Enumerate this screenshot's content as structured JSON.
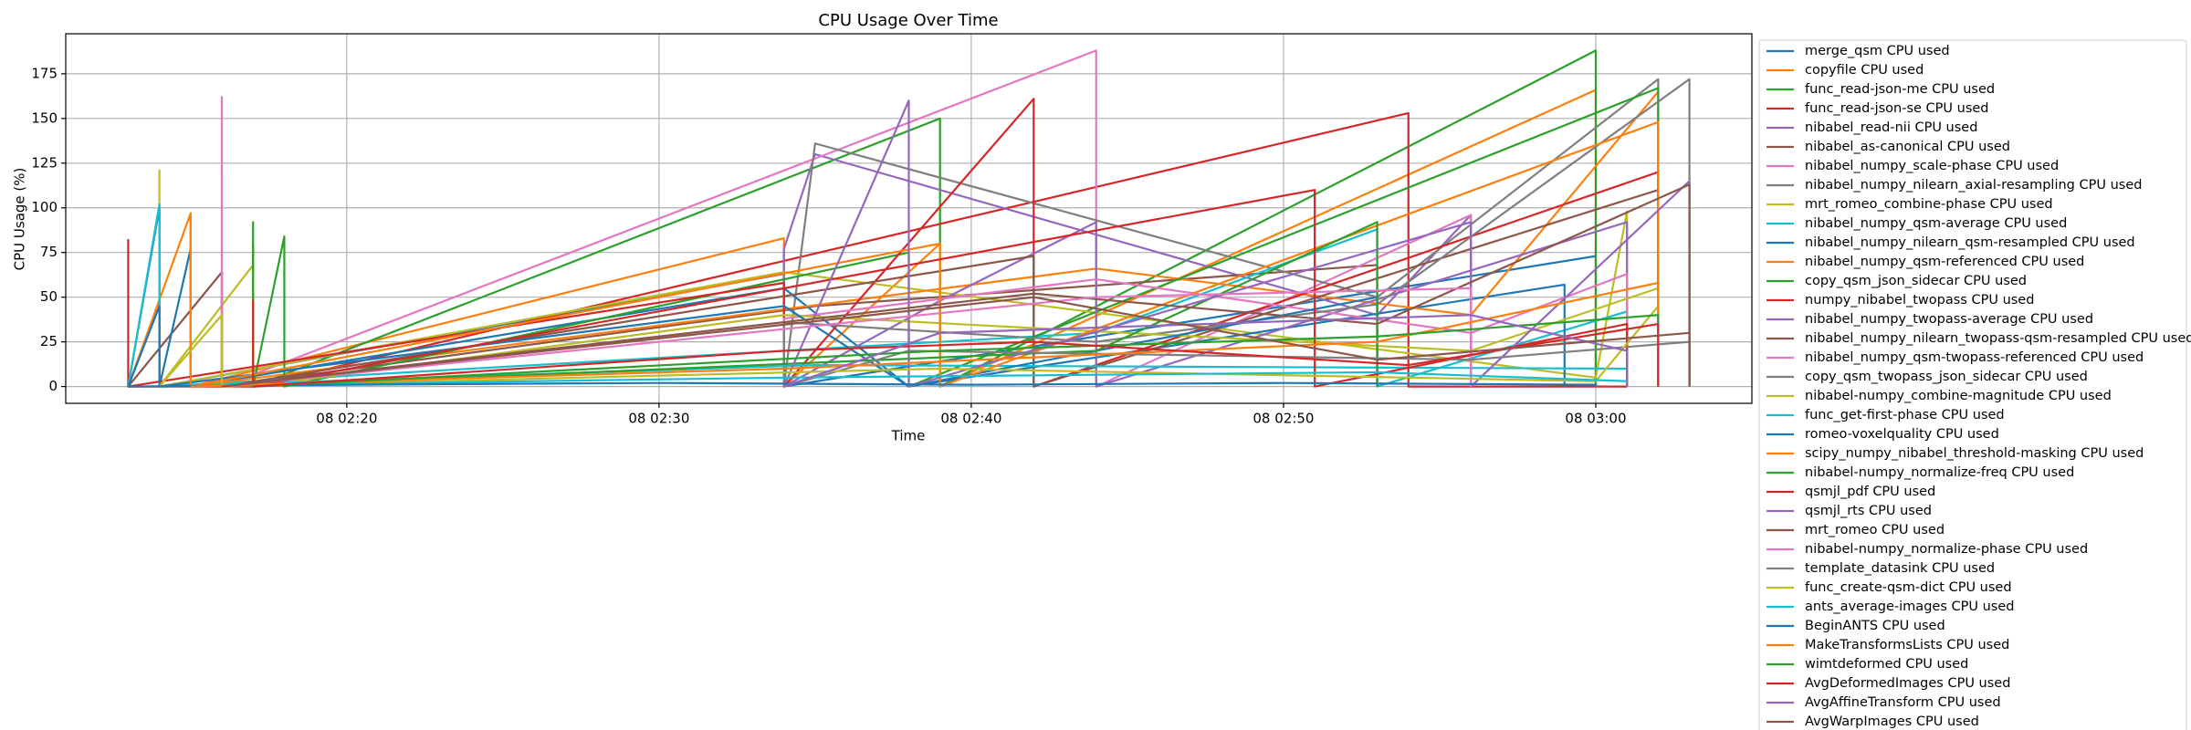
{
  "chart_data": {
    "type": "line",
    "title": "CPU Usage Over Time",
    "x_label": "Time",
    "y_label": "CPU Usage (%)",
    "xlim": [
      "08 02:11",
      "08 03:05"
    ],
    "xticks": [
      "08 02:20",
      "08 02:30",
      "08 02:40",
      "08 02:50",
      "08 03:00"
    ],
    "ylim": [
      -9.4,
      197.4
    ],
    "yticks": [
      0,
      25,
      50,
      75,
      100,
      125,
      150,
      175
    ],
    "grid": true,
    "legend": "outside-right",
    "series": [
      {
        "name": "merge_qsm CPU used",
        "color": "#1f77b4",
        "x": [
          "08 02:13",
          "08 02:14",
          "08 02:14",
          "08 02:34",
          "08 02:34",
          "08 03:00",
          "08 03:00"
        ],
        "values": [
          0,
          100,
          0,
          63,
          0,
          73,
          0
        ]
      },
      {
        "name": "copyfile CPU used",
        "color": "#ff7f0e",
        "x": [
          "08 02:13",
          "08 02:15",
          "08 02:15",
          "08 02:34",
          "08 02:34",
          "08 02:39",
          "08 02:39",
          "08 03:00",
          "08 03:00"
        ],
        "values": [
          0,
          97,
          0,
          83,
          0,
          80,
          0,
          166,
          0
        ]
      },
      {
        "name": "func_read-json-me CPU used",
        "color": "#2ca02c",
        "x": [
          "08 02:17",
          "08 02:17",
          "08 02:17",
          "08 02:39",
          "08 02:39",
          "08 03:00",
          "08 03:00"
        ],
        "values": [
          0,
          92,
          0,
          150,
          0,
          188,
          0
        ]
      },
      {
        "name": "func_read-json-se CPU used",
        "color": "#d62728",
        "x": [
          "08 02:13",
          "08 02:13",
          "08 02:13",
          "08 02:17",
          "08 02:54",
          "08 02:54",
          "08 03:01"
        ],
        "values": [
          0,
          82,
          0,
          0,
          153,
          0,
          0
        ]
      },
      {
        "name": "nibabel_read-nii CPU used",
        "color": "#9467bd",
        "x": [
          "08 02:34",
          "08 02:34",
          "08 02:35",
          "08 02:53",
          "08 02:56",
          "08 02:56"
        ],
        "values": [
          0,
          77,
          130,
          40,
          96,
          0
        ]
      },
      {
        "name": "nibabel_as-canonical CPU used",
        "color": "#8c564b",
        "x": [
          "08 02:13",
          "08 02:16",
          "08 02:16",
          "08 02:35",
          "08 02:53",
          "08 02:53"
        ],
        "values": [
          0,
          64,
          0,
          45,
          68,
          0
        ]
      },
      {
        "name": "nibabel_numpy_scale-phase CPU used",
        "color": "#e377c2",
        "x": [
          "08 02:16",
          "08 02:16",
          "08 02:16",
          "08 02:44",
          "08 02:44",
          "08 02:56",
          "08 02:56"
        ],
        "values": [
          0,
          162,
          0,
          188,
          0,
          96,
          0
        ]
      },
      {
        "name": "nibabel_numpy_nilearn_axial-resampling CPU used",
        "color": "#7f7f7f",
        "x": [
          "08 02:34",
          "08 02:35",
          "08 02:53",
          "08 03:02",
          "08 03:02"
        ],
        "values": [
          0,
          136,
          50,
          172,
          0
        ]
      },
      {
        "name": "mrt_romeo_combine-phase CPU used",
        "color": "#bcbd22",
        "x": [
          "08 02:14",
          "08 02:14",
          "08 02:14",
          "08 02:34",
          "08 03:00",
          "08 03:01",
          "08 03:01"
        ],
        "values": [
          0,
          121,
          0,
          64,
          5,
          98,
          0
        ]
      },
      {
        "name": "nibabel_numpy_qsm-average CPU used",
        "color": "#17becf",
        "x": [
          "08 02:13",
          "08 02:14",
          "08 02:14",
          "08 02:44",
          "08 02:53",
          "08 02:53",
          "08 03:01",
          "08 03:01"
        ],
        "values": [
          0,
          102,
          0,
          30,
          88,
          0,
          42,
          0
        ]
      },
      {
        "name": "nibabel_numpy_nilearn_qsm-resampled CPU used",
        "color": "#1f77b4",
        "x": [
          "08 02:14",
          "08 02:15",
          "08 02:15",
          "08 02:34",
          "08 02:38",
          "08 02:59",
          "08 02:59"
        ],
        "values": [
          0,
          77,
          0,
          55,
          0,
          57,
          0
        ]
      },
      {
        "name": "nibabel_numpy_qsm-referenced CPU used",
        "color": "#ff7f0e",
        "x": [
          "08 02:15",
          "08 02:15",
          "08 02:15",
          "08 02:44",
          "08 02:56",
          "08 03:02",
          "08 03:02"
        ],
        "values": [
          0,
          90,
          0,
          66,
          40,
          165,
          0
        ]
      },
      {
        "name": "copy_qsm_json_sidecar CPU used",
        "color": "#2ca02c",
        "x": [
          "08 02:17",
          "08 02:18",
          "08 02:18",
          "08 02:38",
          "08 02:38",
          "08 03:02",
          "08 03:02"
        ],
        "values": [
          0,
          84,
          0,
          75,
          0,
          167,
          0
        ]
      },
      {
        "name": "numpy_nibabel_twopass CPU used",
        "color": "#d62728",
        "x": [
          "08 02:13",
          "08 02:34",
          "08 02:34",
          "08 02:42",
          "08 02:42",
          "08 03:02",
          "08 03:02"
        ],
        "values": [
          0,
          58,
          0,
          161,
          0,
          120,
          0
        ]
      },
      {
        "name": "nibabel_numpy_twopass-average CPU used",
        "color": "#9467bd",
        "x": [
          "08 02:34",
          "08 02:39",
          "08 02:44",
          "08 02:44",
          "08 03:01",
          "08 03:01"
        ],
        "values": [
          0,
          48,
          92,
          0,
          92,
          0
        ]
      },
      {
        "name": "nibabel_numpy_nilearn_twopass-qsm-resampled CPU used",
        "color": "#8c564b",
        "x": [
          "08 02:16",
          "08 02:16",
          "08 02:16",
          "08 02:42",
          "08 02:42",
          "08 03:02",
          "08 03:02"
        ],
        "values": [
          0,
          50,
          0,
          73,
          0,
          110,
          0
        ]
      },
      {
        "name": "nibabel_numpy_qsm-twopass-referenced CPU used",
        "color": "#e377c2",
        "x": [
          "08 02:34",
          "08 02:34",
          "08 02:44",
          "08 02:56",
          "08 03:01",
          "08 03:01"
        ],
        "values": [
          0,
          38,
          60,
          30,
          63,
          0
        ]
      },
      {
        "name": "copy_qsm_twopass_json_sidecar CPU used",
        "color": "#7f7f7f",
        "x": [
          "08 02:34",
          "08 02:34",
          "08 02:44",
          "08 02:53",
          "08 03:03",
          "08 03:03"
        ],
        "values": [
          0,
          36,
          25,
          46,
          172,
          0
        ]
      },
      {
        "name": "nibabel-numpy_combine-magnitude CPU used",
        "color": "#bcbd22",
        "x": [
          "08 02:14",
          "08 02:17",
          "08 02:17",
          "08 02:34",
          "08 02:56",
          "08 03:02",
          "08 03:02"
        ],
        "values": [
          0,
          68,
          0,
          40,
          20,
          55,
          0
        ]
      },
      {
        "name": "func_get-first-phase CPU used",
        "color": "#17becf",
        "x": [
          "08 02:14",
          "08 02:14",
          "08 02:14",
          "08 02:35",
          "08 03:01",
          "08 03:01"
        ],
        "values": [
          0,
          100,
          0,
          12,
          10,
          0
        ]
      },
      {
        "name": "romeo-voxelquality CPU used",
        "color": "#1f77b4",
        "x": [
          "08 02:13",
          "08 02:14",
          "08 02:14",
          "08 02:34",
          "08 02:38",
          "08 02:53",
          "08 02:53"
        ],
        "values": [
          0,
          45,
          0,
          45,
          0,
          50,
          0
        ]
      },
      {
        "name": "scipy_numpy_nibabel_threshold-masking CPU used",
        "color": "#ff7f0e",
        "x": [
          "08 02:15",
          "08 02:15",
          "08 02:15",
          "08 02:39",
          "08 02:39",
          "08 03:02",
          "08 03:02"
        ],
        "values": [
          0,
          95,
          0,
          80,
          0,
          148,
          0
        ]
      },
      {
        "name": "nibabel-numpy_normalize-freq CPU used",
        "color": "#2ca02c",
        "x": [
          "08 02:17",
          "08 02:17",
          "08 02:17",
          "08 02:44",
          "08 02:53",
          "08 02:53"
        ],
        "values": [
          0,
          80,
          0,
          20,
          92,
          0
        ]
      },
      {
        "name": "qsmjl_pdf CPU used",
        "color": "#d62728",
        "x": [
          "08 02:17",
          "08 02:17",
          "08 02:17",
          "08 02:51",
          "08 02:51",
          "08 03:01",
          "08 03:01"
        ],
        "values": [
          0,
          48,
          0,
          110,
          0,
          35,
          0
        ]
      },
      {
        "name": "qsmjl_rts CPU used",
        "color": "#9467bd",
        "x": [
          "08 02:34",
          "08 02:38",
          "08 02:38",
          "08 02:56",
          "08 02:56",
          "08 03:03",
          "08 03:03"
        ],
        "values": [
          0,
          160,
          0,
          92,
          0,
          115,
          0
        ]
      },
      {
        "name": "mrt_romeo CPU used",
        "color": "#8c564b",
        "x": [
          "08 02:16",
          "08 02:16",
          "08 02:16",
          "08 02:42",
          "08 02:53",
          "08 03:03",
          "08 03:03"
        ],
        "values": [
          0,
          64,
          0,
          52,
          35,
          113,
          0
        ]
      },
      {
        "name": "nibabel-numpy_normalize-phase CPU used",
        "color": "#e377c2",
        "x": [
          "08 02:16",
          "08 02:16",
          "08 02:16",
          "08 02:44",
          "08 02:56",
          "08 02:56"
        ],
        "values": [
          0,
          118,
          0,
          50,
          55,
          0
        ]
      },
      {
        "name": "template_datasink CPU used",
        "color": "#7f7f7f",
        "x": [
          "08 02:34",
          "08 02:38",
          "08 02:56",
          "08 03:03",
          "08 03:03"
        ],
        "values": [
          0,
          20,
          15,
          25,
          0
        ]
      },
      {
        "name": "func_create-qsm-dict CPU used",
        "color": "#bcbd22",
        "x": [
          "08 02:14",
          "08 02:16",
          "08 02:16",
          "08 02:39",
          "08 03:00",
          "08 03:02",
          "08 03:02"
        ],
        "values": [
          0,
          40,
          0,
          10,
          3,
          45,
          0
        ]
      },
      {
        "name": "ants_average-images CPU used",
        "color": "#17becf",
        "x": [
          "08 02:14",
          "08 02:34",
          "08 02:53",
          "08 03:01",
          "08 03:01"
        ],
        "values": [
          0,
          5,
          8,
          3,
          0
        ]
      },
      {
        "name": "BeginANTS CPU used",
        "color": "#1f77b4",
        "x": [
          "08 02:13",
          "08 02:20",
          "08 02:30",
          "08 02:40",
          "08 02:50",
          "08 03:00",
          "08 03:00"
        ],
        "values": [
          0,
          1,
          2,
          1,
          2,
          1,
          0
        ]
      },
      {
        "name": "MakeTransformsLists CPU used",
        "color": "#ff7f0e",
        "x": [
          "08 02:15",
          "08 02:34",
          "08 02:53",
          "08 03:02",
          "08 03:02"
        ],
        "values": [
          0,
          10,
          25,
          58,
          0
        ]
      },
      {
        "name": "wimtdeformed CPU used",
        "color": "#2ca02c",
        "x": [
          "08 02:17",
          "08 02:39",
          "08 02:53",
          "08 03:02",
          "08 03:02"
        ],
        "values": [
          0,
          20,
          28,
          40,
          0
        ]
      },
      {
        "name": "AvgDeformedImages CPU used",
        "color": "#d62728",
        "x": [
          "08 02:17",
          "08 02:34",
          "08 02:42",
          "08 02:54",
          "08 03:02",
          "08 03:02"
        ],
        "values": [
          0,
          20,
          25,
          12,
          35,
          0
        ]
      },
      {
        "name": "AvgAffineTransform CPU used",
        "color": "#9467bd",
        "x": [
          "08 02:34",
          "08 02:39",
          "08 02:56",
          "08 03:01",
          "08 03:01"
        ],
        "values": [
          0,
          30,
          40,
          20,
          0
        ]
      },
      {
        "name": "AvgWarpImages CPU used",
        "color": "#8c564b",
        "x": [
          "08 02:16",
          "08 02:42",
          "08 02:53",
          "08 03:03",
          "08 03:03"
        ],
        "values": [
          0,
          50,
          15,
          30,
          0
        ]
      }
    ]
  }
}
